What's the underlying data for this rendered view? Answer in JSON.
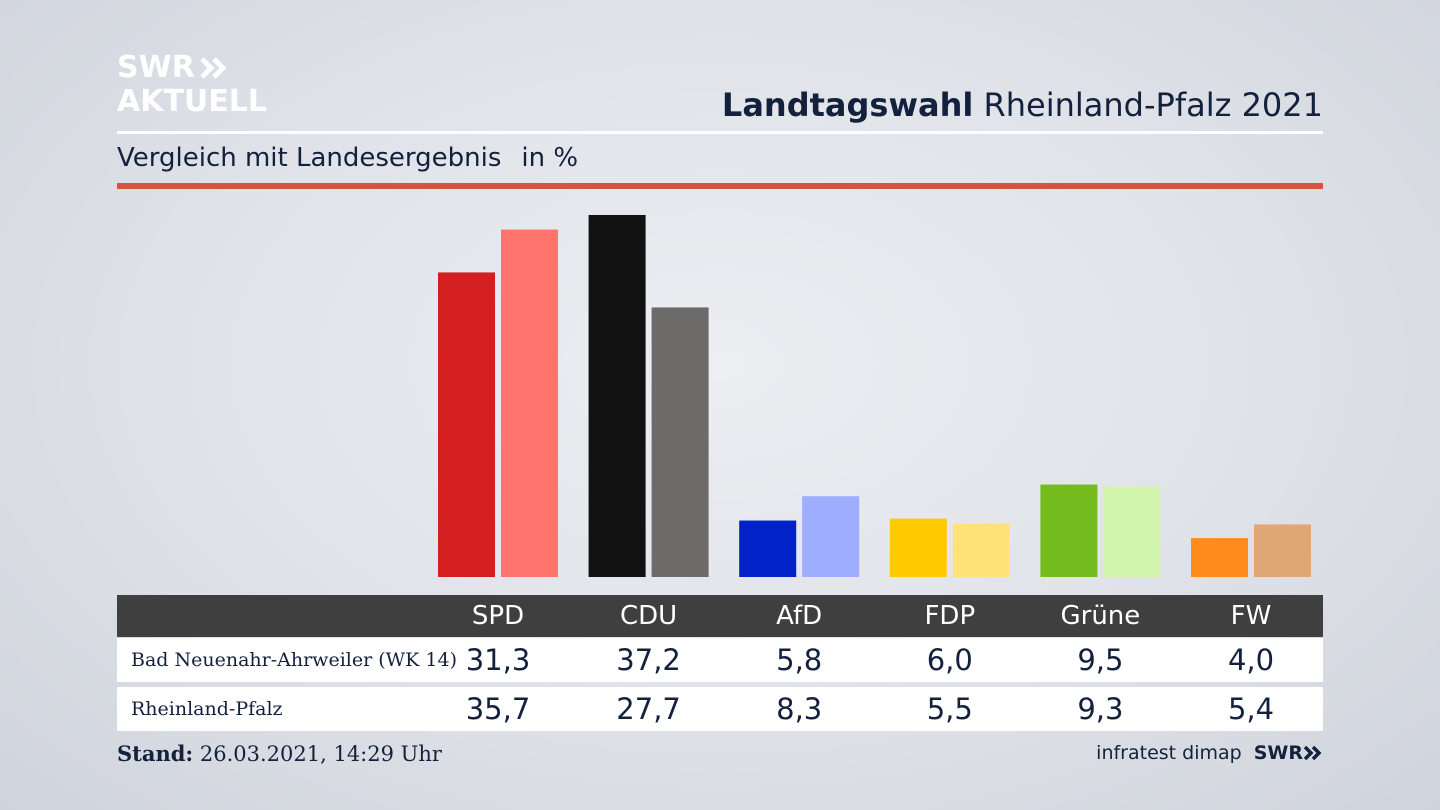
{
  "brand": {
    "line1": "SWR",
    "line2": "AKTUELL",
    "footer_logo": "SWR"
  },
  "header": {
    "title_bold": "Landtagswahl",
    "title_rest": "Rheinland-Pfalz 2021"
  },
  "subheader": {
    "text": "Vergleich mit Landesergebnis",
    "unit": "in %"
  },
  "colors": {
    "accent_rule": "#d5533f",
    "series1": [
      "#d31f1f",
      "#111111",
      "#0022c8",
      "#ffcb00",
      "#74bb1d",
      "#ff8b1a"
    ],
    "series2": [
      "#ff746c",
      "#6c6b69",
      "#9fadff",
      "#ffe37a",
      "#d2f5ae",
      "#dfa774"
    ]
  },
  "chart_data": {
    "type": "bar",
    "categories": [
      "SPD",
      "CDU",
      "AfD",
      "FDP",
      "Grüne",
      "FW"
    ],
    "series": [
      {
        "name": "Bad Neuenahr-Ahrweiler (WK 14)",
        "values": [
          31.3,
          37.2,
          5.8,
          6.0,
          9.5,
          4.0
        ],
        "labels": [
          "31,3",
          "37,2",
          "5,8",
          "6,0",
          "9,5",
          "4,0"
        ]
      },
      {
        "name": "Rheinland-Pfalz",
        "values": [
          35.7,
          27.7,
          8.3,
          5.5,
          9.3,
          5.4
        ],
        "labels": [
          "35,7",
          "27,7",
          "8,3",
          "5,5",
          "9,3",
          "5,4"
        ]
      }
    ],
    "ylim": [
      0,
      37.2
    ]
  },
  "footer": {
    "stand_label": "Stand:",
    "stand_value": "26.03.2021, 14:29 Uhr",
    "source": "infratest dimap"
  }
}
